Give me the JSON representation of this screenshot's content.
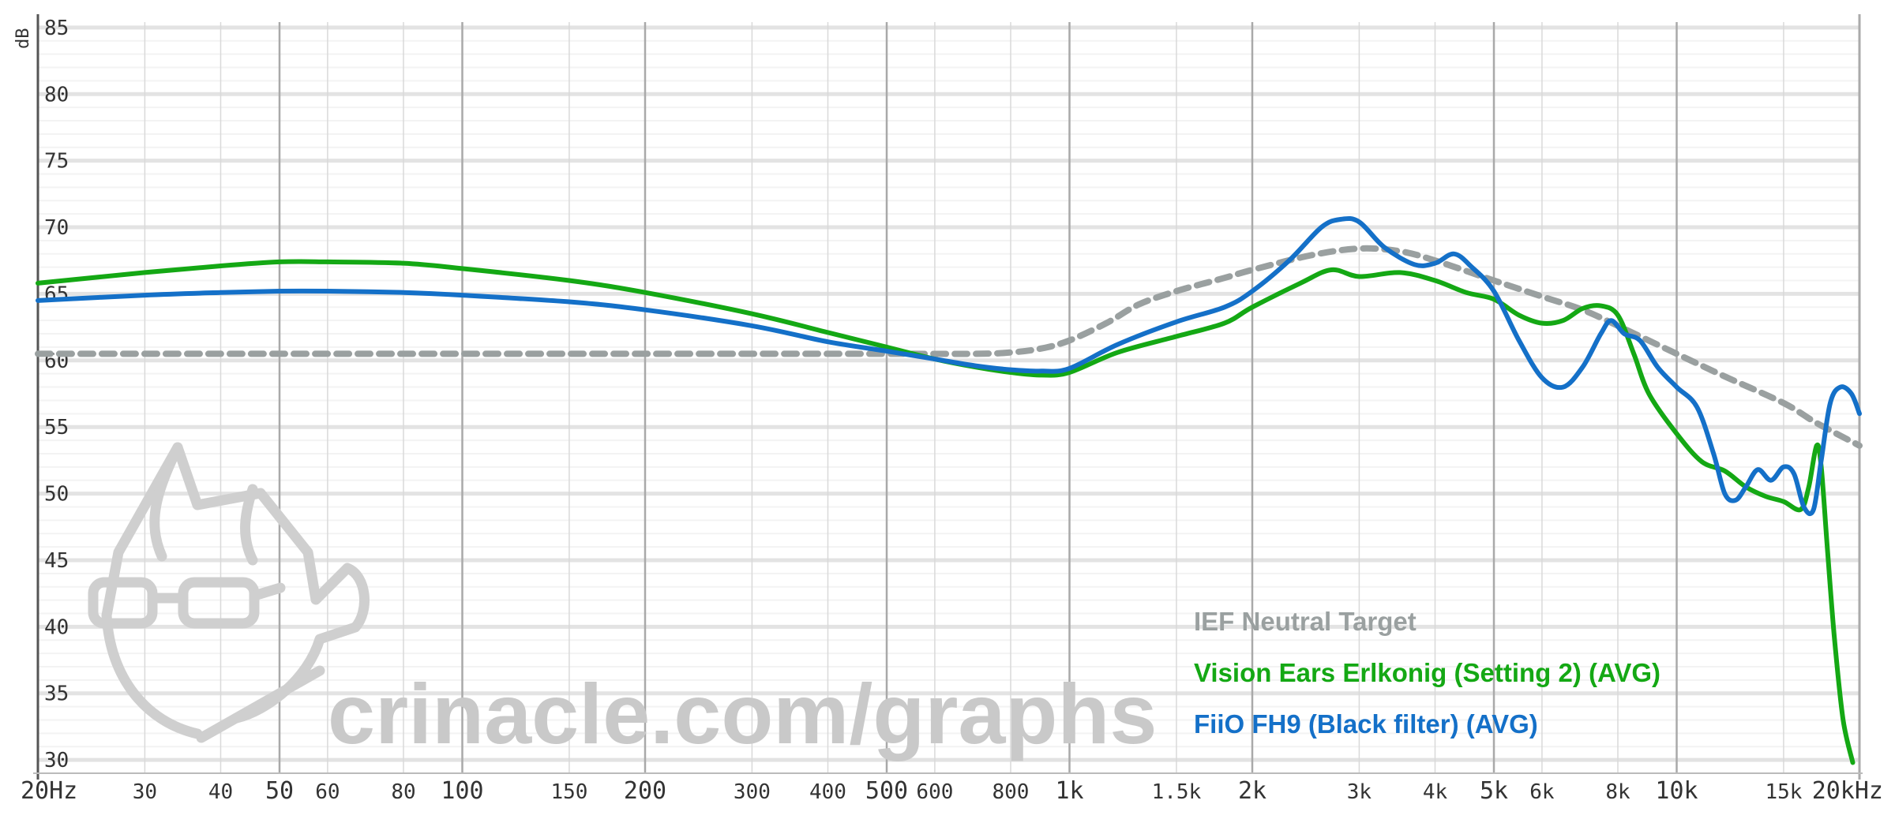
{
  "chart_data": {
    "type": "line",
    "ylabel": "dB",
    "x_scale": "log",
    "xlim": [
      20,
      20000
    ],
    "ylim": [
      29,
      86
    ],
    "y_ticks": [
      30,
      35,
      40,
      45,
      50,
      55,
      60,
      65,
      70,
      75,
      80,
      85
    ],
    "y_tick_labels": [
      "30",
      "35",
      "40",
      "45",
      "50",
      "55",
      "60",
      "65",
      "70",
      "75",
      "80",
      "85"
    ],
    "x_ticks": [
      {
        "value": 20,
        "label": "20Hz",
        "major": true
      },
      {
        "value": 30,
        "label": "30",
        "major": false
      },
      {
        "value": 40,
        "label": "40",
        "major": false
      },
      {
        "value": 50,
        "label": "50",
        "major": true
      },
      {
        "value": 60,
        "label": "60",
        "major": false
      },
      {
        "value": 80,
        "label": "80",
        "major": false
      },
      {
        "value": 100,
        "label": "100",
        "major": true
      },
      {
        "value": 150,
        "label": "150",
        "major": false
      },
      {
        "value": 200,
        "label": "200",
        "major": true
      },
      {
        "value": 300,
        "label": "300",
        "major": false
      },
      {
        "value": 400,
        "label": "400",
        "major": false
      },
      {
        "value": 500,
        "label": "500",
        "major": true
      },
      {
        "value": 600,
        "label": "600",
        "major": false
      },
      {
        "value": 800,
        "label": "800",
        "major": false
      },
      {
        "value": 1000,
        "label": "1k",
        "major": true
      },
      {
        "value": 1500,
        "label": "1.5k",
        "major": false
      },
      {
        "value": 2000,
        "label": "2k",
        "major": true
      },
      {
        "value": 3000,
        "label": "3k",
        "major": false
      },
      {
        "value": 4000,
        "label": "4k",
        "major": false
      },
      {
        "value": 5000,
        "label": "5k",
        "major": true
      },
      {
        "value": 6000,
        "label": "6k",
        "major": false
      },
      {
        "value": 8000,
        "label": "8k",
        "major": false
      },
      {
        "value": 10000,
        "label": "10k",
        "major": true
      },
      {
        "value": 15000,
        "label": "15k",
        "major": false
      },
      {
        "value": 20000,
        "label": "20kHz",
        "major": true
      }
    ],
    "grid": true,
    "legend_position": "bottom-right",
    "series": [
      {
        "name": "IEF Neutral Target",
        "color": "#9aa0a0",
        "dash": true,
        "points": [
          [
            20,
            60.5
          ],
          [
            100,
            60.5
          ],
          [
            300,
            60.5
          ],
          [
            500,
            60.5
          ],
          [
            700,
            60.5
          ],
          [
            800,
            60.6
          ],
          [
            900,
            60.9
          ],
          [
            1000,
            61.5
          ],
          [
            1150,
            62.8
          ],
          [
            1300,
            64.2
          ],
          [
            1500,
            65.2
          ],
          [
            1800,
            66.2
          ],
          [
            2000,
            66.8
          ],
          [
            2500,
            67.9
          ],
          [
            3000,
            68.4
          ],
          [
            3500,
            68.2
          ],
          [
            4000,
            67.5
          ],
          [
            5000,
            66.0
          ],
          [
            6000,
            64.8
          ],
          [
            7000,
            63.8
          ],
          [
            8000,
            62.6
          ],
          [
            10000,
            60.5
          ],
          [
            12000,
            58.8
          ],
          [
            15000,
            56.8
          ],
          [
            17000,
            55.3
          ],
          [
            20000,
            53.6
          ]
        ]
      },
      {
        "name": "Vision Ears Erlkonig (Setting 2) (AVG)",
        "color": "#14a814",
        "dash": false,
        "points": [
          [
            20,
            65.8
          ],
          [
            30,
            66.6
          ],
          [
            40,
            67.1
          ],
          [
            50,
            67.4
          ],
          [
            60,
            67.4
          ],
          [
            80,
            67.3
          ],
          [
            100,
            66.9
          ],
          [
            150,
            66.0
          ],
          [
            200,
            65.1
          ],
          [
            300,
            63.5
          ],
          [
            400,
            62.1
          ],
          [
            500,
            61.0
          ],
          [
            600,
            60.1
          ],
          [
            700,
            59.5
          ],
          [
            800,
            59.1
          ],
          [
            900,
            58.9
          ],
          [
            1000,
            59.1
          ],
          [
            1200,
            60.6
          ],
          [
            1500,
            61.8
          ],
          [
            1800,
            62.8
          ],
          [
            2000,
            64.0
          ],
          [
            2400,
            65.8
          ],
          [
            2700,
            66.8
          ],
          [
            3000,
            66.3
          ],
          [
            3500,
            66.6
          ],
          [
            4000,
            66.0
          ],
          [
            4500,
            65.1
          ],
          [
            5000,
            64.6
          ],
          [
            5500,
            63.4
          ],
          [
            6000,
            62.8
          ],
          [
            6500,
            63.0
          ],
          [
            7000,
            63.9
          ],
          [
            7500,
            64.1
          ],
          [
            8000,
            63.4
          ],
          [
            8500,
            60.5
          ],
          [
            9000,
            57.5
          ],
          [
            10000,
            54.5
          ],
          [
            11000,
            52.4
          ],
          [
            12000,
            51.7
          ],
          [
            13000,
            50.5
          ],
          [
            14000,
            49.8
          ],
          [
            15000,
            49.4
          ],
          [
            16000,
            48.8
          ],
          [
            16500,
            50.5
          ],
          [
            17000,
            53.6
          ],
          [
            17300,
            52.0
          ],
          [
            17700,
            46.0
          ],
          [
            18200,
            39.0
          ],
          [
            18800,
            33.0
          ],
          [
            19500,
            29.8
          ]
        ]
      },
      {
        "name": "FiiO FH9 (Black filter) (AVG)",
        "color": "#1470c8",
        "dash": false,
        "points": [
          [
            20,
            64.5
          ],
          [
            30,
            64.9
          ],
          [
            40,
            65.1
          ],
          [
            50,
            65.2
          ],
          [
            60,
            65.2
          ],
          [
            80,
            65.1
          ],
          [
            100,
            64.9
          ],
          [
            150,
            64.4
          ],
          [
            200,
            63.8
          ],
          [
            300,
            62.6
          ],
          [
            400,
            61.4
          ],
          [
            500,
            60.7
          ],
          [
            600,
            60.1
          ],
          [
            700,
            59.6
          ],
          [
            800,
            59.3
          ],
          [
            900,
            59.2
          ],
          [
            1000,
            59.4
          ],
          [
            1200,
            61.2
          ],
          [
            1500,
            62.9
          ],
          [
            1800,
            64.0
          ],
          [
            2000,
            65.2
          ],
          [
            2300,
            67.5
          ],
          [
            2600,
            70.0
          ],
          [
            2800,
            70.6
          ],
          [
            3000,
            70.4
          ],
          [
            3300,
            68.5
          ],
          [
            3700,
            67.2
          ],
          [
            4000,
            67.3
          ],
          [
            4300,
            68.0
          ],
          [
            4600,
            67.0
          ],
          [
            5000,
            65.2
          ],
          [
            5500,
            61.5
          ],
          [
            6000,
            58.7
          ],
          [
            6500,
            58.0
          ],
          [
            7000,
            59.5
          ],
          [
            7500,
            62.0
          ],
          [
            7800,
            63.0
          ],
          [
            8200,
            62.0
          ],
          [
            8700,
            61.5
          ],
          [
            9300,
            59.5
          ],
          [
            10000,
            58.0
          ],
          [
            10800,
            56.5
          ],
          [
            11500,
            53.0
          ],
          [
            12000,
            50.0
          ],
          [
            12500,
            49.5
          ],
          [
            13000,
            50.5
          ],
          [
            13600,
            51.8
          ],
          [
            14300,
            51.0
          ],
          [
            15000,
            52.0
          ],
          [
            15600,
            51.5
          ],
          [
            16200,
            49.0
          ],
          [
            16800,
            48.8
          ],
          [
            17300,
            52.5
          ],
          [
            17900,
            56.8
          ],
          [
            18600,
            58.0
          ],
          [
            19400,
            57.5
          ],
          [
            20000,
            56.0
          ]
        ]
      }
    ],
    "watermark": "crinacle.com/graphs"
  }
}
